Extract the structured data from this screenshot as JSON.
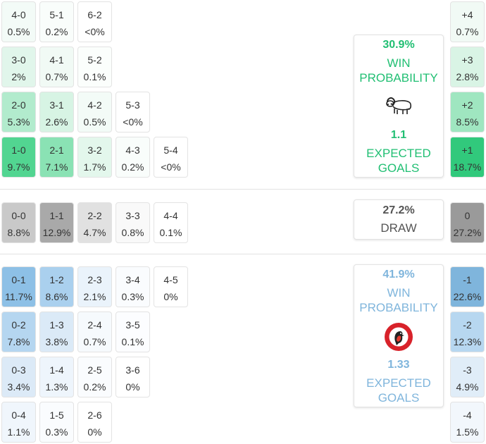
{
  "colors": {
    "home_accent": "#21bf73",
    "away_accent": "#7fb5dc",
    "draw_accent": "#999999"
  },
  "home_grid": [
    [
      {
        "score": "4-0",
        "pct": "0.5%",
        "bg": "#f3fbf7"
      },
      {
        "score": "5-1",
        "pct": "0.2%",
        "bg": "#f9fdfb"
      },
      {
        "score": "6-2",
        "pct": "<0%",
        "bg": "#ffffff"
      }
    ],
    [
      {
        "score": "3-0",
        "pct": "2%",
        "bg": "#e1f6eb"
      },
      {
        "score": "4-1",
        "pct": "0.7%",
        "bg": "#f1faf5"
      },
      {
        "score": "5-2",
        "pct": "0.1%",
        "bg": "#fbfefc"
      }
    ],
    [
      {
        "score": "2-0",
        "pct": "5.3%",
        "bg": "#b2ebcd"
      },
      {
        "score": "3-1",
        "pct": "2.6%",
        "bg": "#d7f4e4"
      },
      {
        "score": "4-2",
        "pct": "0.5%",
        "bg": "#f3fbf7"
      },
      {
        "score": "5-3",
        "pct": "<0%",
        "bg": "#ffffff"
      }
    ],
    [
      {
        "score": "1-0",
        "pct": "9.7%",
        "bg": "#52d591"
      },
      {
        "score": "2-1",
        "pct": "7.1%",
        "bg": "#8ae2b4"
      },
      {
        "score": "3-2",
        "pct": "1.7%",
        "bg": "#e3f7ec"
      },
      {
        "score": "4-3",
        "pct": "0.2%",
        "bg": "#f9fdfb"
      },
      {
        "score": "5-4",
        "pct": "<0%",
        "bg": "#ffffff"
      }
    ]
  ],
  "draw_row": [
    {
      "score": "0-0",
      "pct": "8.8%",
      "bg": "#c9c9c9"
    },
    {
      "score": "1-1",
      "pct": "12.9%",
      "bg": "#a9a9a9"
    },
    {
      "score": "2-2",
      "pct": "4.7%",
      "bg": "#e1e1e1"
    },
    {
      "score": "3-3",
      "pct": "0.8%",
      "bg": "#f9f9f9"
    },
    {
      "score": "4-4",
      "pct": "0.1%",
      "bg": "#ffffff"
    }
  ],
  "away_grid": [
    [
      {
        "score": "0-1",
        "pct": "11.7%",
        "bg": "#8dc0e6"
      },
      {
        "score": "1-2",
        "pct": "8.6%",
        "bg": "#aad0ee"
      },
      {
        "score": "2-3",
        "pct": "2.1%",
        "bg": "#eaf3fb"
      },
      {
        "score": "3-4",
        "pct": "0.3%",
        "bg": "#fafcfe"
      },
      {
        "score": "4-5",
        "pct": "0%",
        "bg": "#ffffff"
      }
    ],
    [
      {
        "score": "0-2",
        "pct": "7.8%",
        "bg": "#b5d6f0"
      },
      {
        "score": "1-3",
        "pct": "3.8%",
        "bg": "#dbeaf7"
      },
      {
        "score": "2-4",
        "pct": "0.7%",
        "bg": "#f6fafd"
      },
      {
        "score": "3-5",
        "pct": "0.1%",
        "bg": "#fcfdff"
      }
    ],
    [
      {
        "score": "0-3",
        "pct": "3.4%",
        "bg": "#dceaf7"
      },
      {
        "score": "1-4",
        "pct": "1.3%",
        "bg": "#eef5fc"
      },
      {
        "score": "2-5",
        "pct": "0.2%",
        "bg": "#fafcfe"
      },
      {
        "score": "3-6",
        "pct": "0%",
        "bg": "#ffffff"
      }
    ],
    [
      {
        "score": "0-4",
        "pct": "1.1%",
        "bg": "#f0f6fc"
      },
      {
        "score": "1-5",
        "pct": "0.3%",
        "bg": "#fafcfe"
      },
      {
        "score": "2-6",
        "pct": "0%",
        "bg": "#ffffff"
      }
    ]
  ],
  "margins": [
    {
      "label": "+4",
      "pct": "0.7%",
      "bg": "#f1faf5"
    },
    {
      "label": "+3",
      "pct": "2.8%",
      "bg": "#d9f4e5"
    },
    {
      "label": "+2",
      "pct": "8.5%",
      "bg": "#9fe6c0"
    },
    {
      "label": "+1",
      "pct": "18.7%",
      "bg": "#31c97c"
    },
    {
      "label": "0",
      "pct": "27.2%",
      "bg": "#9a9a9a"
    },
    {
      "label": "-1",
      "pct": "22.6%",
      "bg": "#7fb5dc"
    },
    {
      "label": "-2",
      "pct": "12.3%",
      "bg": "#b7d7f0"
    },
    {
      "label": "-3",
      "pct": "4.9%",
      "bg": "#e0edf8"
    },
    {
      "label": "-4",
      "pct": "1.5%",
      "bg": "#f2f7fc"
    }
  ],
  "home_panel": {
    "win_pct": "30.9%",
    "win_line1": "WIN",
    "win_line2": "PROBABILITY",
    "xg": "1.1",
    "xg_line1": "EXPECTED",
    "xg_line2": "GOALS",
    "crest_icon": "ram-crest-icon"
  },
  "draw_panel": {
    "pct": "27.2%",
    "label": "DRAW"
  },
  "away_panel": {
    "win_pct": "41.9%",
    "win_line1": "WIN",
    "win_line2": "PROBABILITY",
    "xg": "1.33",
    "xg_line1": "EXPECTED",
    "xg_line2": "GOALS",
    "crest_icon": "robin-crest-icon"
  }
}
